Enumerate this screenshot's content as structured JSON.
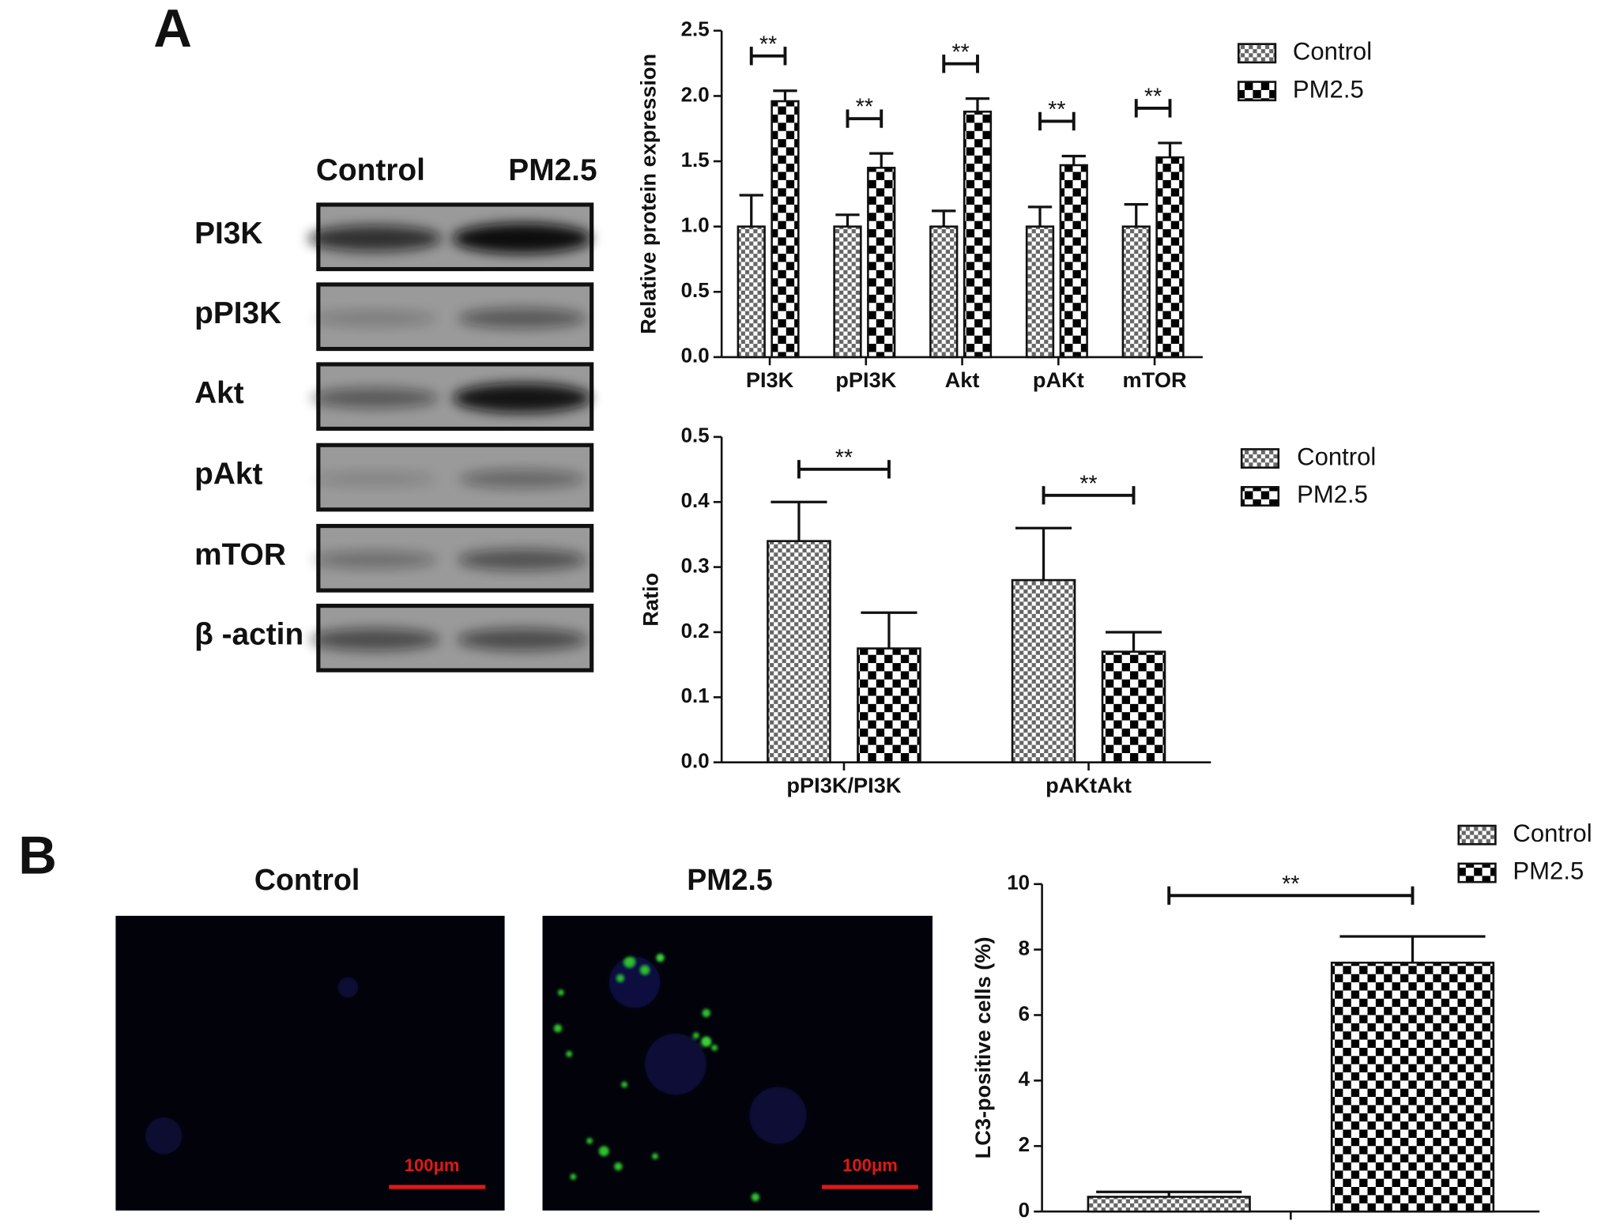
{
  "panels": {
    "a": "A",
    "b": "B"
  },
  "blot": {
    "columns": [
      "Control",
      "PM2.5"
    ],
    "rows": [
      "PI3K",
      "pPI3K",
      "Akt",
      "pAkt",
      "mTOR",
      "β -actin"
    ]
  },
  "images": [
    {
      "title": "Control",
      "scale_bar": "100μm"
    },
    {
      "title": "PM2.5",
      "scale_bar": "100μm"
    }
  ],
  "chart_data": [
    {
      "type": "bar",
      "y_label": "Relative protein expression",
      "categories": [
        "PI3K",
        "pPI3K",
        "Akt",
        "pAKt",
        "mTOR"
      ],
      "series": [
        {
          "name": "Control",
          "color": "#666666",
          "values": [
            1.0,
            1.0,
            1.0,
            1.0,
            1.0
          ],
          "errors": [
            0.24,
            0.09,
            0.12,
            0.15,
            0.17
          ]
        },
        {
          "name": "PM2.5",
          "color": "#000000",
          "values": [
            1.96,
            1.45,
            1.88,
            1.47,
            1.53
          ],
          "errors": [
            0.08,
            0.11,
            0.1,
            0.07,
            0.11
          ]
        }
      ],
      "annotations": [
        "**",
        "**",
        "**",
        "**",
        "**"
      ],
      "ylim": [
        0,
        2.5
      ],
      "yticks": [
        {
          "value": 0,
          "label": "0.0"
        },
        {
          "value": 0.5,
          "label": "0.5"
        },
        {
          "value": 1,
          "label": "1.0"
        },
        {
          "value": 1.5,
          "label": "1.5"
        },
        {
          "value": 2,
          "label": "2.0"
        },
        {
          "value": 2.5,
          "label": "2.5"
        }
      ],
      "grid": false,
      "legend": "right"
    },
    {
      "type": "bar",
      "y_label": "Ratio",
      "categories": [
        "pPI3K/PI3K",
        "pAKtAkt"
      ],
      "series": [
        {
          "name": "Control",
          "color": "#666666",
          "values": [
            0.34,
            0.28
          ],
          "errors": [
            0.06,
            0.08
          ]
        },
        {
          "name": "PM2.5",
          "color": "#000000",
          "values": [
            0.175,
            0.17
          ],
          "errors": [
            0.055,
            0.03
          ]
        }
      ],
      "annotations": [
        "**",
        "**"
      ],
      "ylim": [
        0,
        0.5
      ],
      "yticks": [
        {
          "value": 0,
          "label": "0.0"
        },
        {
          "value": 0.1,
          "label": "0.1"
        },
        {
          "value": 0.2,
          "label": "0.2"
        },
        {
          "value": 0.3,
          "label": "0.3"
        },
        {
          "value": 0.4,
          "label": "0.4"
        },
        {
          "value": 0.5,
          "label": "0.5"
        }
      ],
      "grid": false,
      "legend": "right"
    },
    {
      "type": "bar",
      "y_label": "LC3-positive cells (%)",
      "categories": [
        null
      ],
      "series": [
        {
          "name": "Control",
          "color": "#666666",
          "values": [
            0.45
          ],
          "errors": [
            0.15
          ]
        },
        {
          "name": "PM2.5",
          "color": "#000000",
          "values": [
            7.6
          ],
          "errors": [
            0.8
          ]
        }
      ],
      "annotations": [
        "**"
      ],
      "ylim": [
        0,
        10
      ],
      "yticks": [
        0,
        2,
        4,
        6,
        8,
        10
      ],
      "grid": false,
      "legend": "right"
    }
  ]
}
